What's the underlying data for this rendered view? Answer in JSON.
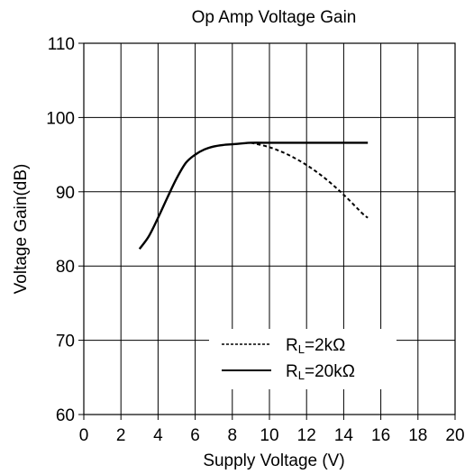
{
  "chart_data": {
    "type": "line",
    "title": "Op Amp Voltage Gain",
    "xlabel": "Supply Voltage (V)",
    "ylabel": "Voltage Gain(dB)",
    "xlim": [
      0,
      20
    ],
    "ylim": [
      60,
      110
    ],
    "xticks": [
      0,
      2,
      4,
      6,
      8,
      10,
      12,
      14,
      16,
      18,
      20
    ],
    "yticks": [
      60,
      70,
      80,
      90,
      100,
      110
    ],
    "grid": true,
    "legend_position": "lower-right",
    "series": [
      {
        "name": "RL=2kΩ",
        "name_main": "R",
        "name_sub": "L",
        "name_rest": "=2kΩ",
        "style": "dashed",
        "x": [
          9.0,
          10.0,
          11.0,
          12.0,
          13.0,
          14.0,
          15.0,
          15.3
        ],
        "y": [
          96.6,
          96.0,
          95.0,
          93.6,
          91.8,
          89.6,
          87.1,
          86.5
        ]
      },
      {
        "name": "RL=20kΩ",
        "name_main": "R",
        "name_sub": "L",
        "name_rest": "=20kΩ",
        "style": "solid",
        "x": [
          3.0,
          3.5,
          4.0,
          4.5,
          5.0,
          5.5,
          6.0,
          6.5,
          7.0,
          7.5,
          8.0,
          8.5,
          9.0,
          10.0,
          11.0,
          12.0,
          13.0,
          14.0,
          15.0,
          15.3
        ],
        "y": [
          82.3,
          84.0,
          86.5,
          89.2,
          91.8,
          93.9,
          95.0,
          95.7,
          96.1,
          96.3,
          96.4,
          96.5,
          96.6,
          96.6,
          96.6,
          96.6,
          96.6,
          96.6,
          96.6,
          96.6
        ]
      }
    ]
  }
}
